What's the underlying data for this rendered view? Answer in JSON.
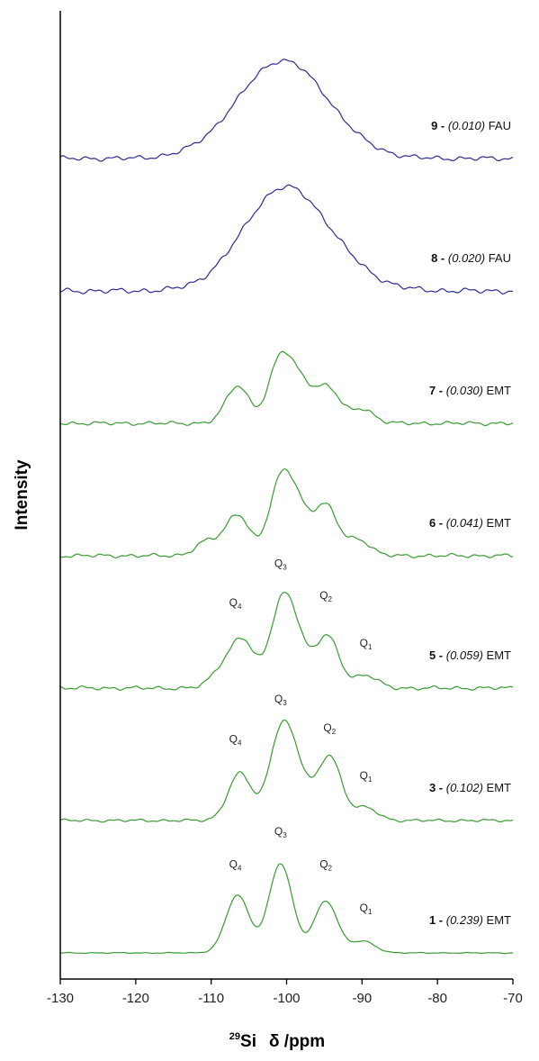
{
  "chart_data": {
    "type": "line",
    "ylabel": "Intensity",
    "xlabel": {
      "sup": "29",
      "nucleus": "Si",
      "rest": "δ /ppm"
    },
    "xlim": [
      -130,
      -70
    ],
    "x_reversed": false,
    "y_axis_visible": true,
    "y_ticks_visible": false,
    "grid": false,
    "x_ticks": [
      -130,
      -120,
      -110,
      -100,
      -90,
      -80,
      -70
    ],
    "x_tick_labels": [
      "-130",
      "-120",
      "-110",
      "-100",
      "-90",
      "-80",
      "-70"
    ],
    "colors": {
      "EMT": "#3a9a32",
      "FAU": "#2c2c92"
    },
    "series": [
      {
        "name": "1",
        "ratio": "0.239",
        "phase": "EMT",
        "color": "#3a9a32",
        "noise": 0.2,
        "peaks": [
          [
            -106.5,
            1.0
          ],
          [
            -100.8,
            1.55
          ],
          [
            -94.8,
            0.9
          ],
          [
            -89.8,
            0.2
          ]
        ],
        "q_labels": [
          {
            "q": "4",
            "x": -106.8,
            "y": 1.48
          },
          {
            "q": "3",
            "x": -100.8,
            "y": 2.05
          },
          {
            "q": "2",
            "x": -94.8,
            "y": 1.48
          },
          {
            "q": "1",
            "x": -89.5,
            "y": 0.72
          }
        ]
      },
      {
        "name": "3",
        "ratio": "0.102",
        "phase": "EMT",
        "color": "#3a9a32",
        "noise": 0.6,
        "peaks": [
          [
            -106.2,
            0.82
          ],
          [
            -100.8,
            1.45
          ],
          [
            -98.5,
            0.7
          ],
          [
            -94.3,
            1.12
          ],
          [
            -89.5,
            0.22
          ]
        ],
        "q_labels": [
          {
            "q": "4",
            "x": -106.8,
            "y": 1.35
          },
          {
            "q": "3",
            "x": -100.8,
            "y": 2.05
          },
          {
            "q": "2",
            "x": -94.3,
            "y": 1.55
          },
          {
            "q": "1",
            "x": -89.5,
            "y": 0.72
          }
        ]
      },
      {
        "name": "5",
        "ratio": "0.059",
        "phase": "EMT",
        "color": "#3a9a32",
        "noise": 0.8,
        "peaks": [
          [
            -108.5,
            0.3
          ],
          [
            -105.8,
            0.8
          ],
          [
            -100.8,
            1.25
          ],
          [
            -98.8,
            0.75
          ],
          [
            -94.6,
            0.9
          ],
          [
            -89.5,
            0.22
          ]
        ],
        "q_labels": [
          {
            "q": "4",
            "x": -106.8,
            "y": 1.42
          },
          {
            "q": "3",
            "x": -100.8,
            "y": 2.1
          },
          {
            "q": "2",
            "x": -94.8,
            "y": 1.55
          },
          {
            "q": "1",
            "x": -89.5,
            "y": 0.72
          }
        ]
      },
      {
        "name": "6",
        "ratio": "0.041",
        "phase": "EMT",
        "color": "#3a9a32",
        "noise": 0.8,
        "peaks": [
          [
            -110.5,
            0.25
          ],
          [
            -106.5,
            0.72
          ],
          [
            -100.8,
            1.2
          ],
          [
            -98.5,
            0.7
          ],
          [
            -94.8,
            0.85
          ],
          [
            -90.5,
            0.28
          ]
        ]
      },
      {
        "name": "7",
        "ratio": "0.030",
        "phase": "EMT",
        "color": "#3a9a32",
        "noise": 0.8,
        "peaks": [
          [
            -106.5,
            0.65
          ],
          [
            -100.8,
            1.1
          ],
          [
            -98.0,
            0.6
          ],
          [
            -94.5,
            0.6
          ],
          [
            -90.0,
            0.25
          ]
        ]
      },
      {
        "name": "8",
        "ratio": "0.020",
        "phase": "FAU",
        "color": "#2c2c92",
        "noise": 1.1,
        "peaks": [
          [
            -101.0,
            1.55
          ],
          [
            -95.0,
            0.45
          ]
        ],
        "width": 5.2
      },
      {
        "name": "9",
        "ratio": "0.010",
        "phase": "FAU",
        "color": "#2c2c92",
        "noise": 1.0,
        "peaks": [
          [
            -100.5,
            1.7
          ]
        ],
        "width": 6.0
      }
    ]
  }
}
